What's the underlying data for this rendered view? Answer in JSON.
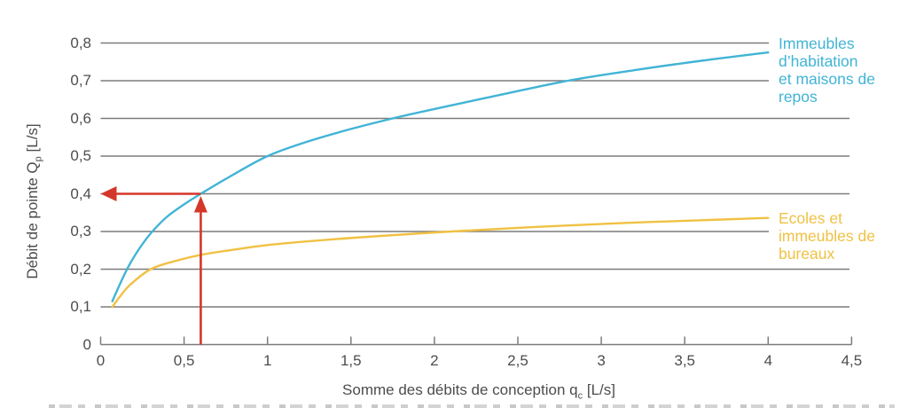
{
  "chart_data": {
    "type": "line",
    "title": "",
    "xlabel": {
      "pre": "Somme des débits de conception q",
      "sub": "c",
      "post": " [L/s]"
    },
    "ylabel": {
      "pre": "Débit de pointe Q",
      "sub": "p",
      "post": " [L/s]"
    },
    "xlim": [
      0,
      4.5
    ],
    "ylim": [
      0,
      0.8
    ],
    "x_ticks": [
      0,
      0.5,
      1,
      1.5,
      2,
      2.5,
      3,
      3.5,
      4,
      4.5
    ],
    "x_tick_labels": [
      "0",
      "0,5",
      "1",
      "1,5",
      "2",
      "2,5",
      "3",
      "3,5",
      "4",
      "4,5"
    ],
    "y_ticks": [
      0,
      0.1,
      0.2,
      0.3,
      0.4,
      0.5,
      0.6,
      0.7,
      0.8
    ],
    "y_tick_labels": [
      "0",
      "0,1",
      "0,2",
      "0,3",
      "0,4",
      "0,5",
      "0,6",
      "0,7",
      "0,8"
    ],
    "grid": "horizontal",
    "legend_position": "right",
    "series": [
      {
        "name": "Immeubles d’habitation et maisons de repos",
        "color": "#41b4d5",
        "points": [
          [
            0.07,
            0.115
          ],
          [
            0.11,
            0.155
          ],
          [
            0.17,
            0.21
          ],
          [
            0.24,
            0.26
          ],
          [
            0.31,
            0.3
          ],
          [
            0.4,
            0.34
          ],
          [
            0.5,
            0.372
          ],
          [
            0.6,
            0.4
          ],
          [
            0.78,
            0.447
          ],
          [
            1.0,
            0.5
          ],
          [
            1.25,
            0.54
          ],
          [
            1.5,
            0.572
          ],
          [
            1.75,
            0.6
          ],
          [
            2.0,
            0.625
          ],
          [
            2.4,
            0.663
          ],
          [
            2.8,
            0.7
          ],
          [
            3.2,
            0.728
          ],
          [
            3.6,
            0.753
          ],
          [
            4.0,
            0.775
          ]
        ]
      },
      {
        "name": "Ecoles et immeubles de bureaux",
        "color": "#f0c143",
        "points": [
          [
            0.07,
            0.1
          ],
          [
            0.12,
            0.13
          ],
          [
            0.18,
            0.16
          ],
          [
            0.3,
            0.2
          ],
          [
            0.45,
            0.222
          ],
          [
            0.6,
            0.238
          ],
          [
            0.8,
            0.252
          ],
          [
            1.0,
            0.264
          ],
          [
            1.3,
            0.276
          ],
          [
            1.6,
            0.286
          ],
          [
            2.1,
            0.3
          ],
          [
            2.6,
            0.312
          ],
          [
            3.1,
            0.322
          ],
          [
            3.6,
            0.33
          ],
          [
            4.0,
            0.336
          ]
        ]
      }
    ],
    "annotation": {
      "type": "reading-arrows",
      "x": 0.6,
      "y": 0.4,
      "color": "#d4372a"
    },
    "colors": {
      "grid": "#7c7c7c",
      "tick_text": "#4d4d4d"
    }
  },
  "legend": [
    {
      "lines": [
        "Immeubles",
        "d’habitation",
        "et maisons de",
        "repos"
      ],
      "color": "#41b4d5"
    },
    {
      "lines": [
        "Ecoles et",
        "immeubles de",
        "bureaux"
      ],
      "color": "#f0c143"
    }
  ]
}
